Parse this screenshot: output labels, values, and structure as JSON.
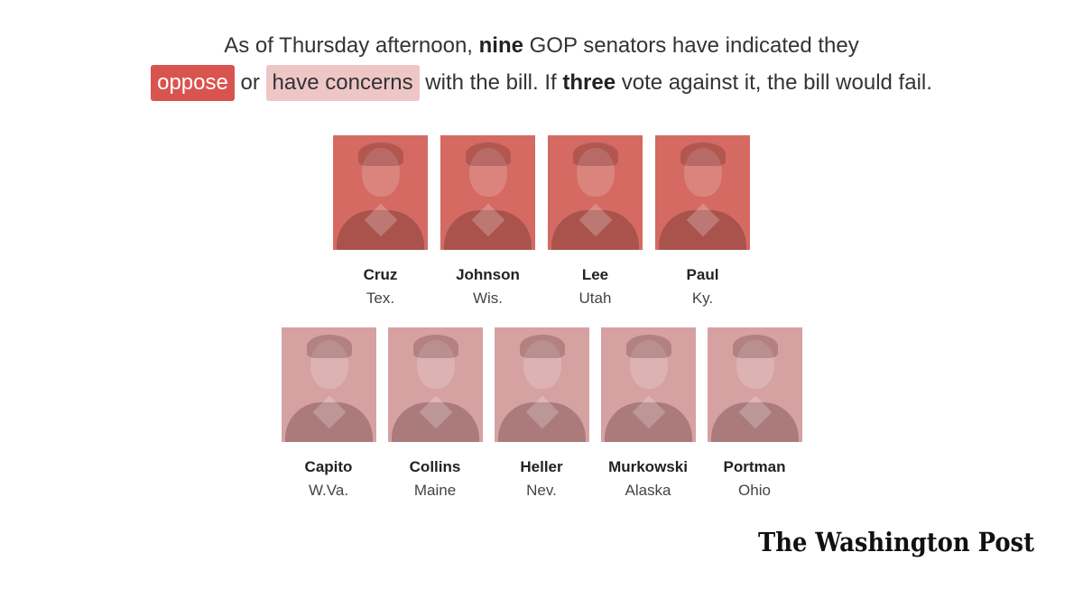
{
  "headline": {
    "line1_prefix": "As of Thursday afternoon, ",
    "line1_bold": "nine",
    "line1_suffix": " GOP senators have indicated they",
    "oppose_label": "oppose",
    "or_text": " or ",
    "concern_label": "have concerns",
    "line2_middle": " with the bill. If ",
    "line2_bold": "three",
    "line2_suffix": " vote against it, the bill would fail."
  },
  "colors": {
    "oppose": "#d9534f",
    "concern": "#efc6c6"
  },
  "oppose_senators": [
    {
      "name": "Cruz",
      "state": "Tex."
    },
    {
      "name": "Johnson",
      "state": "Wis."
    },
    {
      "name": "Lee",
      "state": "Utah"
    },
    {
      "name": "Paul",
      "state": "Ky."
    }
  ],
  "concern_senators": [
    {
      "name": "Capito",
      "state": "W.Va."
    },
    {
      "name": "Collins",
      "state": "Maine"
    },
    {
      "name": "Heller",
      "state": "Nev."
    },
    {
      "name": "Murkowski",
      "state": "Alaska"
    },
    {
      "name": "Portman",
      "state": "Ohio"
    }
  ],
  "logo": {
    "text": "The Washington Post"
  }
}
